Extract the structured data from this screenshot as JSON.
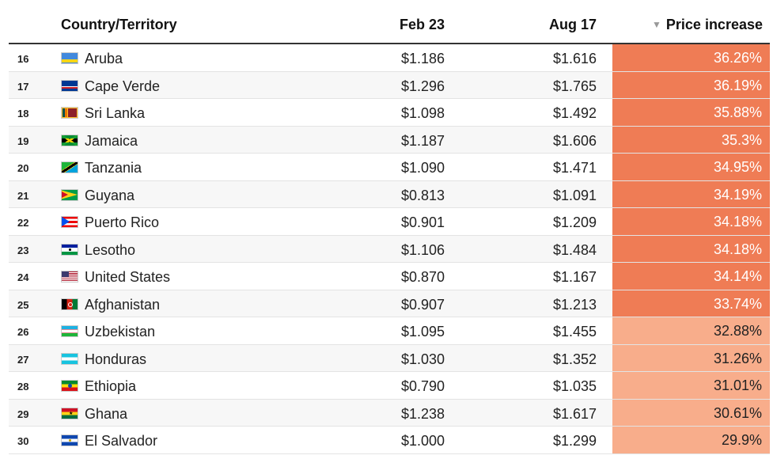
{
  "header": {
    "country": "Country/Territory",
    "feb": "Feb 23",
    "aug": "Aug 17",
    "increase": "Price increase",
    "sort_icon": "▼"
  },
  "colors": {
    "high": "#ef7c55",
    "low": "#f8ad8b"
  },
  "rows": [
    {
      "rank": "16",
      "flag": "aruba-flag-icon",
      "country": "Aruba",
      "feb": "$1.186",
      "aug": "$1.616",
      "increase": "36.26%",
      "level": "hi"
    },
    {
      "rank": "17",
      "flag": "cape-verde-flag-icon",
      "country": "Cape Verde",
      "feb": "$1.296",
      "aug": "$1.765",
      "increase": "36.19%",
      "level": "hi"
    },
    {
      "rank": "18",
      "flag": "sri-lanka-flag-icon",
      "country": "Sri Lanka",
      "feb": "$1.098",
      "aug": "$1.492",
      "increase": "35.88%",
      "level": "hi"
    },
    {
      "rank": "19",
      "flag": "jamaica-flag-icon",
      "country": "Jamaica",
      "feb": "$1.187",
      "aug": "$1.606",
      "increase": "35.3%",
      "level": "hi"
    },
    {
      "rank": "20",
      "flag": "tanzania-flag-icon",
      "country": "Tanzania",
      "feb": "$1.090",
      "aug": "$1.471",
      "increase": "34.95%",
      "level": "hi"
    },
    {
      "rank": "21",
      "flag": "guyana-flag-icon",
      "country": "Guyana",
      "feb": "$0.813",
      "aug": "$1.091",
      "increase": "34.19%",
      "level": "hi"
    },
    {
      "rank": "22",
      "flag": "puerto-rico-flag-icon",
      "country": "Puerto Rico",
      "feb": "$0.901",
      "aug": "$1.209",
      "increase": "34.18%",
      "level": "hi"
    },
    {
      "rank": "23",
      "flag": "lesotho-flag-icon",
      "country": "Lesotho",
      "feb": "$1.106",
      "aug": "$1.484",
      "increase": "34.18%",
      "level": "hi"
    },
    {
      "rank": "24",
      "flag": "united-states-flag-icon",
      "country": "United States",
      "feb": "$0.870",
      "aug": "$1.167",
      "increase": "34.14%",
      "level": "hi"
    },
    {
      "rank": "25",
      "flag": "afghanistan-flag-icon",
      "country": "Afghanistan",
      "feb": "$0.907",
      "aug": "$1.213",
      "increase": "33.74%",
      "level": "hi"
    },
    {
      "rank": "26",
      "flag": "uzbekistan-flag-icon",
      "country": "Uzbekistan",
      "feb": "$1.095",
      "aug": "$1.455",
      "increase": "32.88%",
      "level": "lo"
    },
    {
      "rank": "27",
      "flag": "honduras-flag-icon",
      "country": "Honduras",
      "feb": "$1.030",
      "aug": "$1.352",
      "increase": "31.26%",
      "level": "lo"
    },
    {
      "rank": "28",
      "flag": "ethiopia-flag-icon",
      "country": "Ethiopia",
      "feb": "$0.790",
      "aug": "$1.035",
      "increase": "31.01%",
      "level": "lo"
    },
    {
      "rank": "29",
      "flag": "ghana-flag-icon",
      "country": "Ghana",
      "feb": "$1.238",
      "aug": "$1.617",
      "increase": "30.61%",
      "level": "lo"
    },
    {
      "rank": "30",
      "flag": "el-salvador-flag-icon",
      "country": "El Salvador",
      "feb": "$1.000",
      "aug": "$1.299",
      "increase": "29.9%",
      "level": "lo"
    }
  ]
}
